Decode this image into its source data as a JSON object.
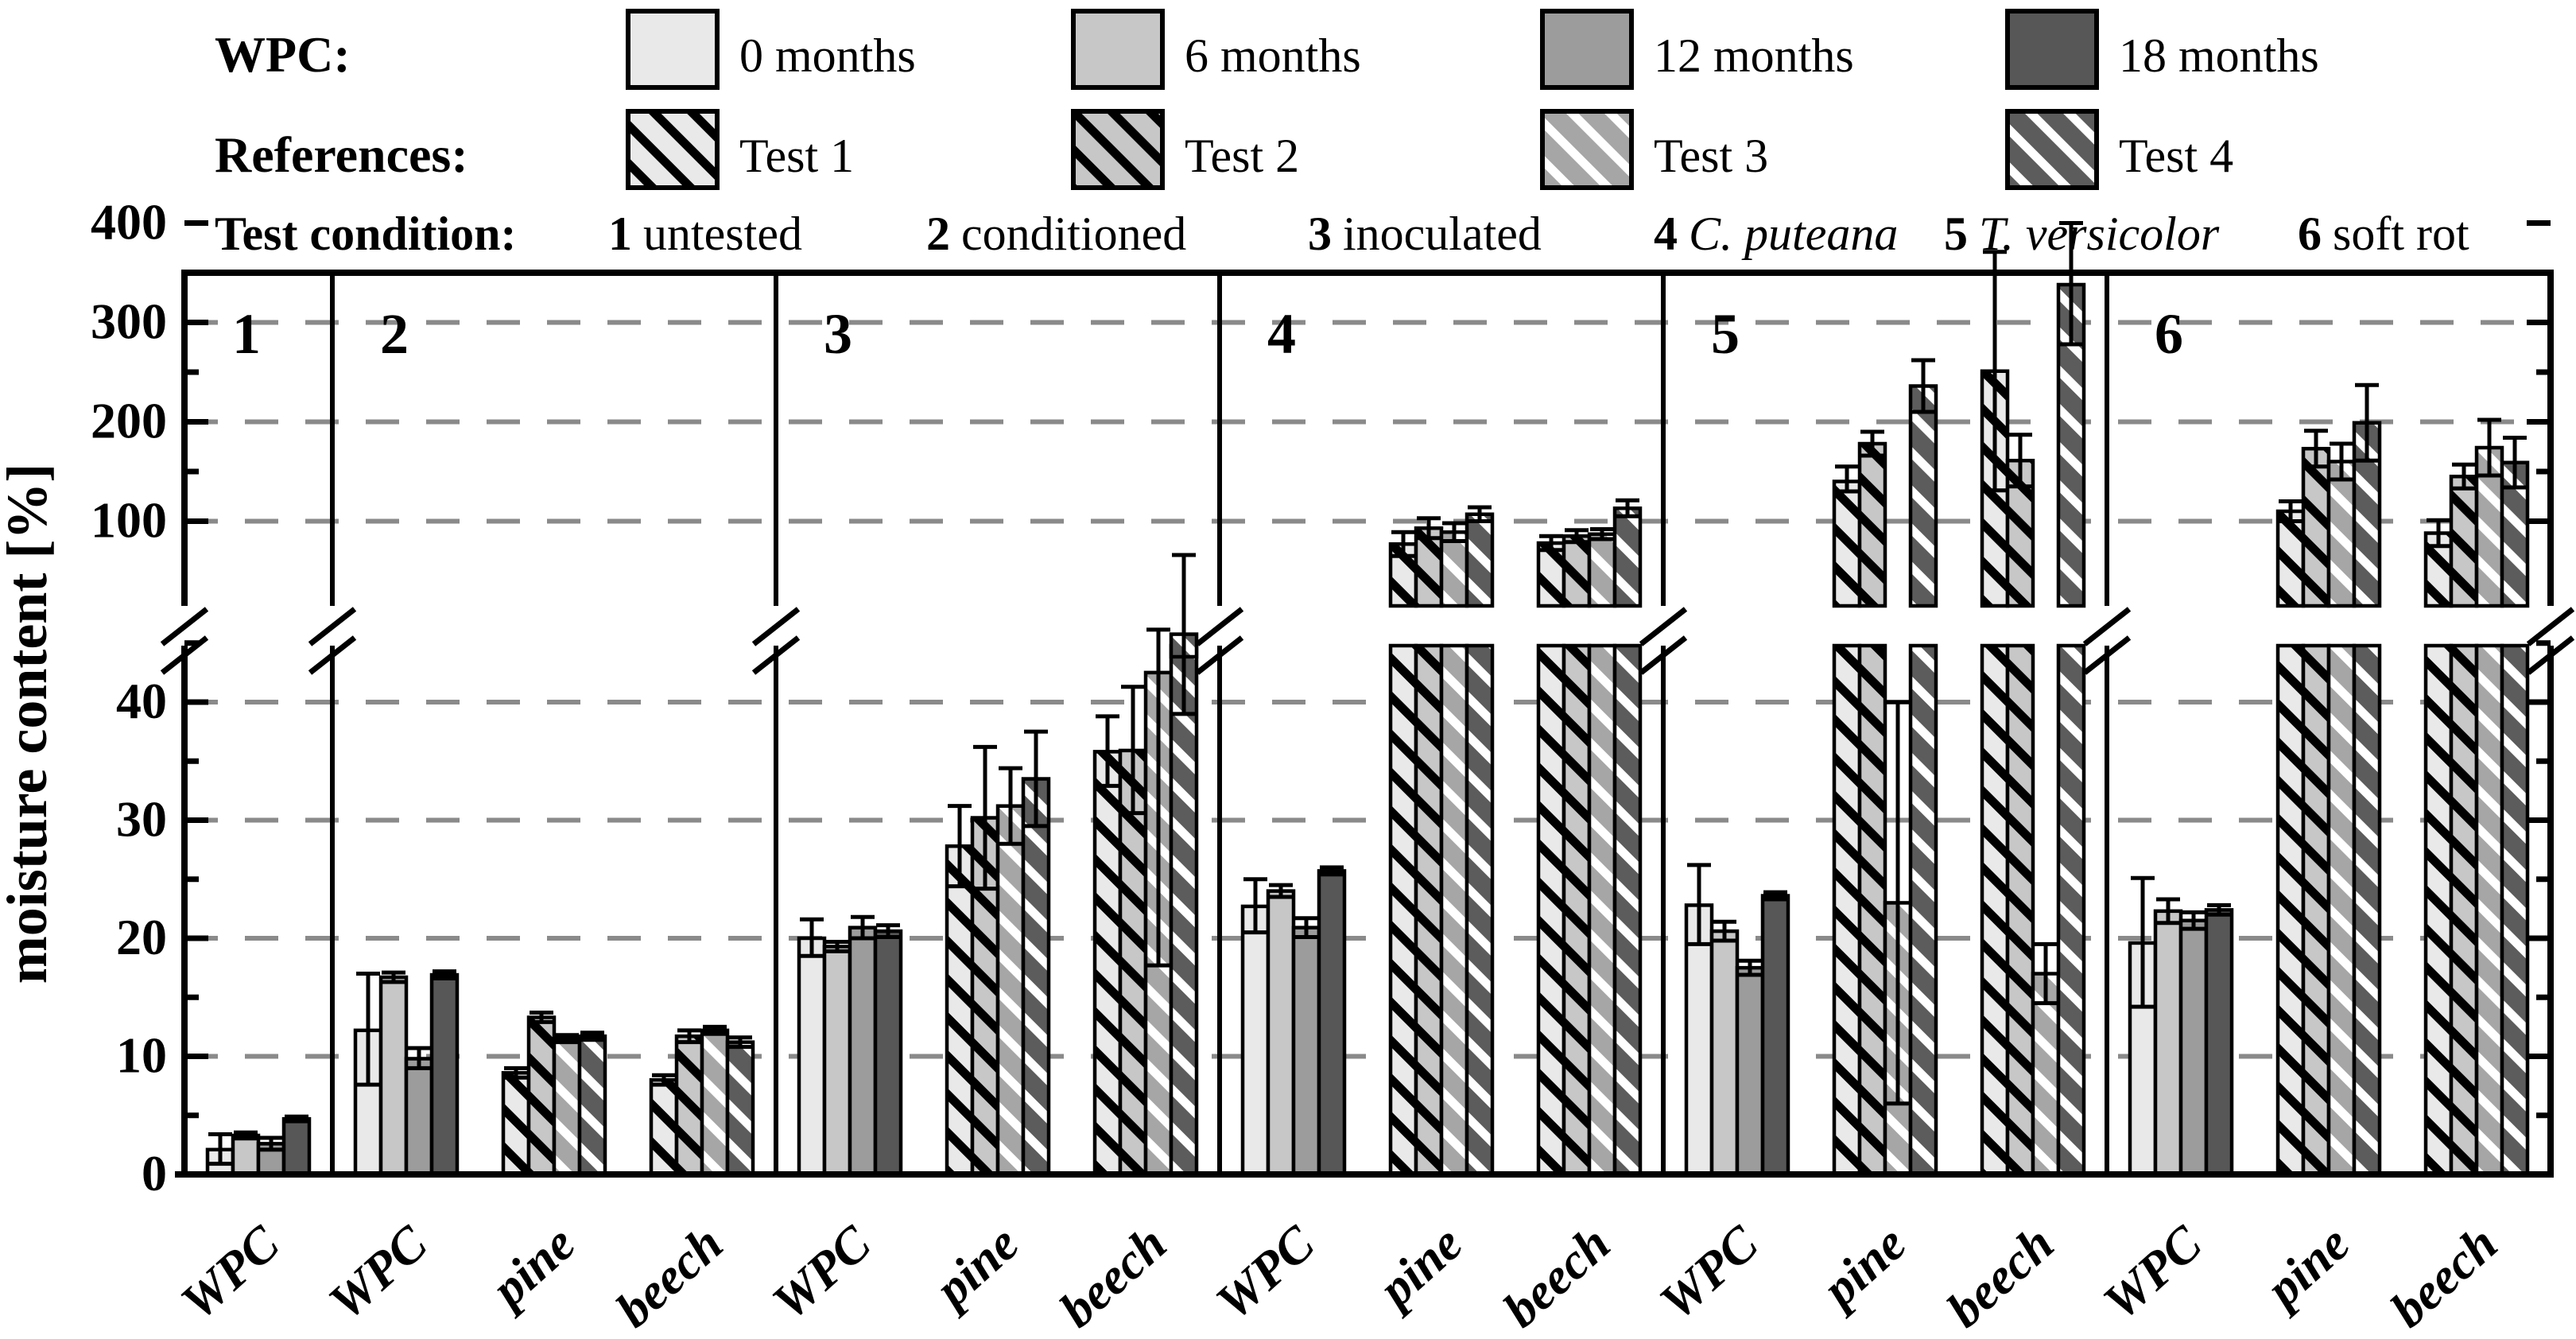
{
  "chart_data": {
    "type": "bar",
    "title": "",
    "ylabel": "moisture content [%]",
    "axis": {
      "lower_ticks": [
        "0",
        "10",
        "20",
        "30",
        "40"
      ],
      "lower_tick_values": [
        0,
        10,
        20,
        30,
        40
      ],
      "upper_ticks": [
        "100",
        "200",
        "300",
        "400"
      ],
      "upper_tick_values": [
        100,
        200,
        300,
        400
      ],
      "lower_range": [
        0,
        45
      ],
      "upper_range": [
        50,
        400
      ],
      "broken": true,
      "grid": "dashed-horizontal"
    },
    "legend": {
      "wpc_label": "WPC:",
      "wpc_items": [
        {
          "label": "0 months",
          "color": "#e9e9e9"
        },
        {
          "label": "6 months",
          "color": "#c7c7c7"
        },
        {
          "label": "12 months",
          "color": "#9c9c9c"
        },
        {
          "label": "18 months",
          "color": "#575757"
        }
      ],
      "ref_label": "References:",
      "ref_items": [
        {
          "label": "Test 1",
          "bg": "#e9e9e9",
          "line": "#000000"
        },
        {
          "label": "Test 2",
          "bg": "#c7c7c7",
          "line": "#000000"
        },
        {
          "label": "Test 3",
          "bg": "#a6a6a6",
          "line": "#ffffff"
        },
        {
          "label": "Test 4",
          "bg": "#5c5c5c",
          "line": "#ffffff"
        }
      ],
      "cond_label": "Test condition:",
      "conditions": [
        {
          "num": "1",
          "name": "untested",
          "italic": false
        },
        {
          "num": "2",
          "name": "conditioned",
          "italic": false
        },
        {
          "num": "3",
          "name": "inoculated",
          "italic": false
        },
        {
          "num": "4",
          "name": "C. puteana",
          "italic": true
        },
        {
          "num": "5",
          "name": "T. versicolor",
          "italic": true
        },
        {
          "num": "6",
          "name": "soft rot",
          "italic": false
        }
      ]
    },
    "panels": [
      {
        "condition": "1",
        "groups": [
          {
            "label": "WPC",
            "kind": "wpc",
            "values": [
              2.1,
              3.3,
              2.6,
              4.7
            ],
            "err_up": [
              1.3,
              0.25,
              0.5,
              0.2
            ],
            "err_dn": [
              1.2,
              0.25,
              0.5,
              0.2
            ]
          }
        ]
      },
      {
        "condition": "2",
        "groups": [
          {
            "label": "WPC",
            "kind": "wpc",
            "values": [
              12.2,
              16.7,
              9.8,
              16.9
            ],
            "err_up": [
              4.8,
              0.4,
              0.9,
              0.3
            ],
            "err_dn": [
              4.6,
              0.4,
              0.8,
              0.3
            ]
          },
          {
            "label": "pine",
            "kind": "ref",
            "values": [
              8.6,
              13.3,
              11.5,
              11.7
            ],
            "err_up": [
              0.4,
              0.4,
              0.3,
              0.3
            ],
            "err_dn": [
              0.4,
              0.4,
              0.3,
              0.3
            ]
          },
          {
            "label": "beech",
            "kind": "ref",
            "values": [
              8.0,
              11.7,
              12.2,
              11.2
            ],
            "err_up": [
              0.4,
              0.5,
              0.3,
              0.4
            ],
            "err_dn": [
              0.4,
              0.5,
              0.3,
              0.4
            ]
          }
        ]
      },
      {
        "condition": "3",
        "groups": [
          {
            "label": "WPC",
            "kind": "wpc",
            "values": [
              20.0,
              19.3,
              20.9,
              20.6
            ],
            "err_up": [
              1.6,
              0.4,
              0.9,
              0.5
            ],
            "err_dn": [
              1.5,
              0.4,
              0.9,
              0.5
            ]
          },
          {
            "label": "pine",
            "kind": "ref",
            "values": [
              27.8,
              30.2,
              31.2,
              33.5
            ],
            "err_up": [
              3.4,
              6.0,
              3.2,
              4.0
            ],
            "err_dn": [
              3.4,
              6.0,
              3.2,
              4.0
            ]
          },
          {
            "label": "beech",
            "kind": "ref",
            "values": [
              35.8,
              35.9,
              42.5,
              47.0
            ],
            "err_up": [
              3.0,
              5.4,
              5.5,
              19.0
            ],
            "err_dn": [
              2.9,
              5.3,
              24.8,
              8.0
            ]
          }
        ]
      },
      {
        "condition": "4",
        "groups": [
          {
            "label": "WPC",
            "kind": "wpc",
            "values": [
              22.7,
              24.0,
              20.9,
              25.7
            ],
            "err_up": [
              2.3,
              0.5,
              0.8,
              0.3
            ],
            "err_dn": [
              2.2,
              0.5,
              0.8,
              0.3
            ]
          },
          {
            "label": "pine",
            "kind": "ref",
            "values": [
              77,
              93,
              89,
              107
            ],
            "err_up": [
              12,
              10,
              9,
              7
            ],
            "err_dn": [
              12,
              10,
              9,
              7
            ]
          },
          {
            "label": "beech",
            "kind": "ref",
            "values": [
              78,
              85,
              87,
              113
            ],
            "err_up": [
              7,
              6,
              5,
              8
            ],
            "err_dn": [
              7,
              6,
              5,
              8
            ]
          }
        ]
      },
      {
        "condition": "5",
        "groups": [
          {
            "label": "WPC",
            "kind": "wpc",
            "values": [
              22.8,
              20.6,
              17.5,
              23.6
            ],
            "err_up": [
              3.4,
              0.8,
              0.6,
              0.3
            ],
            "err_dn": [
              3.3,
              0.8,
              0.6,
              0.3
            ]
          },
          {
            "label": "pine",
            "kind": "ref",
            "values": [
              140,
              178,
              23,
              236
            ],
            "err_up": [
              15,
              12,
              17,
              26
            ],
            "err_dn": [
              10,
              12,
              17,
              26
            ]
          },
          {
            "label": "beech",
            "kind": "ref",
            "values": [
              251,
              161,
              17,
              338
            ],
            "err_up": [
              120,
              26,
              2.5,
              62
            ],
            "err_dn": [
              120,
              26,
              2.5,
              60
            ]
          }
        ]
      },
      {
        "condition": "6",
        "groups": [
          {
            "label": "WPC",
            "kind": "wpc",
            "values": [
              19.6,
              22.3,
              21.5,
              22.4
            ],
            "err_up": [
              5.5,
              1.0,
              0.7,
              0.4
            ],
            "err_dn": [
              5.4,
              1.0,
              0.7,
              0.4
            ]
          },
          {
            "label": "pine",
            "kind": "ref",
            "values": [
              110,
              173,
              160,
              199
            ],
            "err_up": [
              10,
              18,
              18,
              38
            ],
            "err_dn": [
              10,
              18,
              18,
              38
            ]
          },
          {
            "label": "beech",
            "kind": "ref",
            "values": [
              88,
              145,
              174,
              159
            ],
            "err_up": [
              13,
              12,
              28,
              25
            ],
            "err_dn": [
              13,
              12,
              28,
              25
            ]
          }
        ]
      }
    ],
    "colors": {
      "bar_outline": "#000000",
      "grid": "#8a8a8a",
      "axis": "#000000"
    }
  }
}
